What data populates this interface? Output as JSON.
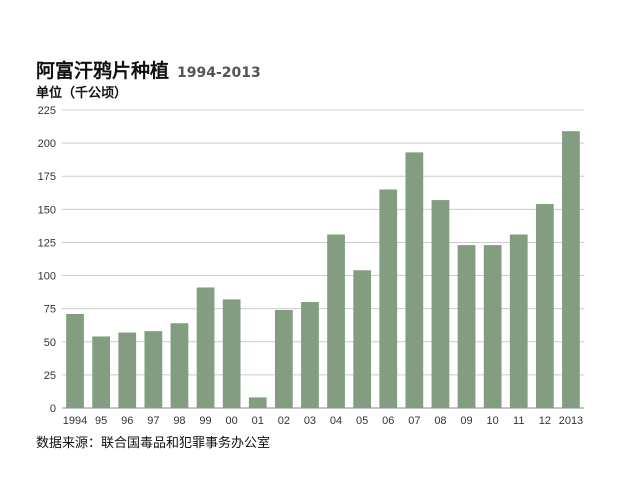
{
  "chart_data": {
    "type": "bar",
    "title": "阿富汗鸦片种植",
    "subtitle": "1994-2013",
    "ylabel": "单位（千公顷）",
    "source": "数据来源：联合国毒品和犯罪事务办公室",
    "categories": [
      "1994",
      "95",
      "96",
      "97",
      "98",
      "99",
      "00",
      "01",
      "02",
      "03",
      "04",
      "05",
      "06",
      "07",
      "08",
      "09",
      "10",
      "11",
      "12",
      "2013"
    ],
    "values": [
      71,
      54,
      57,
      58,
      64,
      91,
      82,
      8,
      74,
      80,
      131,
      104,
      165,
      193,
      157,
      123,
      123,
      131,
      154,
      209
    ],
    "ylim": [
      0,
      225
    ],
    "yticks": [
      0,
      25,
      50,
      75,
      100,
      125,
      150,
      175,
      200,
      225
    ],
    "grid": true,
    "bar_color": "#839d81",
    "grid_color": "#cccccc"
  }
}
